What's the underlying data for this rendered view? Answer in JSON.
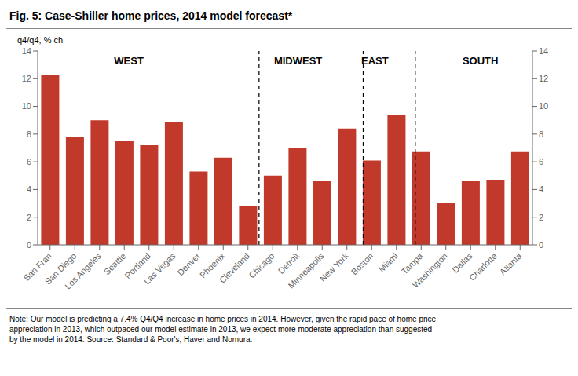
{
  "chart_data": {
    "type": "bar",
    "title": "Fig. 5: Case-Shiller home prices, 2014 model forecast*",
    "ylabel": "q4/q4, % ch",
    "categories": [
      "San Fran",
      "San Diego",
      "Los Angeles",
      "Seattle",
      "Portland",
      "Las Vegas",
      "Denver",
      "Phoenix",
      "Cleveland",
      "Chicago",
      "Detroit",
      "Minneapolis",
      "New York",
      "Boston",
      "Miami",
      "Tampa",
      "Washington",
      "Dallas",
      "Charlotte",
      "Atlanta"
    ],
    "values": [
      12.3,
      7.8,
      9.0,
      7.5,
      7.2,
      8.9,
      5.3,
      6.3,
      2.8,
      5.0,
      7.0,
      4.6,
      8.4,
      6.1,
      9.4,
      6.7,
      3.0,
      4.6,
      4.7,
      6.7
    ],
    "color": "#c0392b",
    "ylim": [
      0,
      14
    ],
    "yticks": [
      0,
      2,
      4,
      6,
      8,
      10,
      12,
      14
    ],
    "y2lim": [
      0,
      14
    ],
    "y2ticks": [
      0,
      2,
      4,
      6,
      8,
      10,
      12,
      14
    ],
    "grid": false,
    "annotations": [
      {
        "text": "WEST",
        "x": 3.5,
        "y": 13.3
      },
      {
        "text": "MIDWEST",
        "x": 10.0,
        "y": 13.3
      },
      {
        "text": "EAST",
        "x": 12.95,
        "y": 13.3
      },
      {
        "text": "SOUTH",
        "x": 17.0,
        "y": 13.3
      }
    ],
    "dividers": [
      8.5,
      12.5,
      14.5
    ],
    "note": "Note: Our model is predicting a 7.4% Q4/Q4 increase in home prices in 2014. However, given the rapid pace of home price\nappreciation in 2013, which outpaced our model estimate in 2013, we expect more moderate appreciation than suggested\nby the model in 2014. Source: Standard & Poor's, Haver and Nomura."
  }
}
